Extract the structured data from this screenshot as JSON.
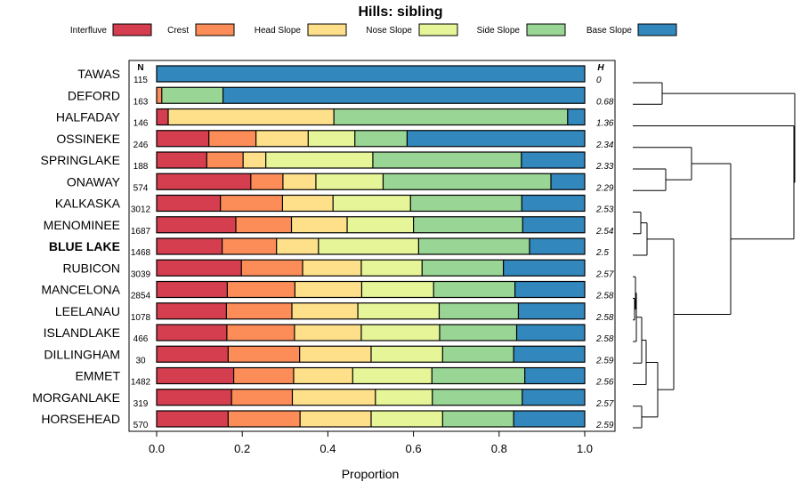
{
  "chart_data": {
    "type": "bar",
    "orientation": "horizontal-stacked",
    "title": "Hills: sibling",
    "xlabel": "Proportion",
    "ylabel": "",
    "xlim": [
      0,
      1
    ],
    "x_ticks": [
      "0.0",
      "0.2",
      "0.4",
      "0.6",
      "0.8",
      "1.0"
    ],
    "n_header": "N",
    "h_header": "H",
    "highlight": "BLUE LAKE",
    "legend": [
      {
        "name": "Interfluve",
        "color": "#D53E4F"
      },
      {
        "name": "Crest",
        "color": "#FC8D59"
      },
      {
        "name": "Head Slope",
        "color": "#FEE08B"
      },
      {
        "name": "Nose Slope",
        "color": "#E6F598"
      },
      {
        "name": "Side Slope",
        "color": "#99D594"
      },
      {
        "name": "Base Slope",
        "color": "#3288BD"
      }
    ],
    "rows": [
      {
        "name": "TAWAS",
        "n": "115",
        "h": "0",
        "values": [
          0,
          0,
          0,
          0,
          0,
          1.0
        ]
      },
      {
        "name": "DEFORD",
        "n": "163",
        "h": "0.68",
        "values": [
          0,
          0.012,
          0,
          0,
          0.143,
          0.845
        ]
      },
      {
        "name": "HALFADAY",
        "n": "146",
        "h": "1.36",
        "values": [
          0.027,
          0,
          0.387,
          0,
          0.546,
          0.04
        ]
      },
      {
        "name": "OSSINEKE",
        "n": "246",
        "h": "2.34",
        "values": [
          0.122,
          0.11,
          0.122,
          0.109,
          0.122,
          0.415
        ]
      },
      {
        "name": "SPRINGLAKE",
        "n": "188",
        "h": "2.33",
        "values": [
          0.117,
          0.085,
          0.053,
          0.25,
          0.347,
          0.148
        ]
      },
      {
        "name": "ONAWAY",
        "n": "574",
        "h": "2.29",
        "values": [
          0.22,
          0.075,
          0.077,
          0.157,
          0.392,
          0.079
        ]
      },
      {
        "name": "KALKASKA",
        "n": "3012",
        "h": "2.53",
        "values": [
          0.149,
          0.145,
          0.118,
          0.181,
          0.26,
          0.147
        ]
      },
      {
        "name": "MENOMINEE",
        "n": "1687",
        "h": "2.54",
        "values": [
          0.185,
          0.13,
          0.13,
          0.155,
          0.255,
          0.145
        ]
      },
      {
        "name": "BLUE LAKE",
        "n": "1468",
        "h": "2.5",
        "values": [
          0.153,
          0.127,
          0.098,
          0.234,
          0.259,
          0.129
        ]
      },
      {
        "name": "RUBICON",
        "n": "3039",
        "h": "2.57",
        "values": [
          0.198,
          0.143,
          0.137,
          0.142,
          0.19,
          0.19
        ]
      },
      {
        "name": "MANCELONA",
        "n": "2854",
        "h": "2.58",
        "values": [
          0.165,
          0.158,
          0.156,
          0.168,
          0.19,
          0.163
        ]
      },
      {
        "name": "LEELANAU",
        "n": "1078",
        "h": "2.58",
        "values": [
          0.163,
          0.153,
          0.154,
          0.19,
          0.185,
          0.155
        ]
      },
      {
        "name": "ISLANDLAKE",
        "n": "466",
        "h": "2.58",
        "values": [
          0.164,
          0.158,
          0.156,
          0.183,
          0.18,
          0.159
        ]
      },
      {
        "name": "DILLINGHAM",
        "n": "30",
        "h": "2.59",
        "values": [
          0.167,
          0.167,
          0.167,
          0.167,
          0.166,
          0.166
        ]
      },
      {
        "name": "EMMET",
        "n": "1482",
        "h": "2.56",
        "values": [
          0.18,
          0.14,
          0.138,
          0.185,
          0.217,
          0.14
        ]
      },
      {
        "name": "MORGANLAKE",
        "n": "319",
        "h": "2.57",
        "values": [
          0.175,
          0.142,
          0.194,
          0.133,
          0.21,
          0.146
        ]
      },
      {
        "name": "HORSEHEAD",
        "n": "570",
        "h": "2.59",
        "values": [
          0.167,
          0.168,
          0.166,
          0.167,
          0.166,
          0.166
        ]
      }
    ]
  }
}
